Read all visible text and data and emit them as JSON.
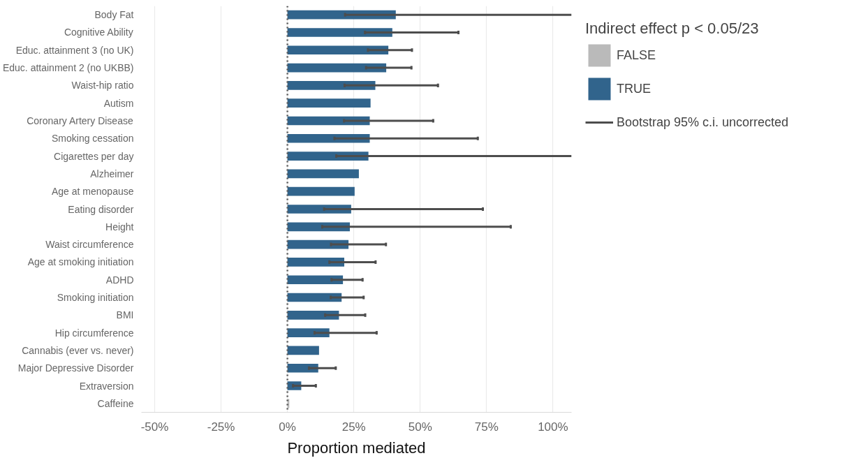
{
  "chart_data": {
    "type": "bar",
    "orientation": "horizontal",
    "xlabel": "Proportion mediated",
    "legend_title": "Indirect effect p < 0.05/23",
    "categories": [
      "Body Fat",
      "Cognitive Ability",
      "Educ. attainment 3 (no UK)",
      "Educ. attainment 2 (no UKBB)",
      "Waist-hip ratio",
      "Autism",
      "Coronary Artery Disease",
      "Smoking cessation",
      "Cigarettes per day",
      "Alzheimer",
      "Age at menopause",
      "Eating disorder",
      "Height",
      "Waist circumference",
      "Age at smoking initiation",
      "ADHD",
      "Smoking initiation",
      "BMI",
      "Hip circumference",
      "Cannabis (ever vs. never)",
      "Major Depressive Disorder",
      "Extraversion",
      "Caffeine"
    ],
    "series": [
      {
        "name": "FALSE",
        "color": "#bababa",
        "values": [
          null,
          null,
          null,
          null,
          null,
          null,
          null,
          null,
          null,
          null,
          null,
          null,
          null,
          null,
          null,
          null,
          null,
          null,
          null,
          null,
          null,
          null,
          0.7
        ]
      },
      {
        "name": "TRUE",
        "color": "#31648c",
        "values": [
          40.8,
          39.5,
          38.0,
          37.2,
          33.1,
          31.3,
          31.0,
          31.0,
          30.5,
          26.9,
          25.3,
          24.0,
          23.5,
          23.0,
          21.4,
          20.9,
          20.4,
          19.4,
          15.8,
          11.9,
          11.6,
          5.2,
          null
        ],
        "errors": [
          [
            21.7,
            107
          ],
          [
            29.2,
            64.4
          ],
          [
            30.3,
            46.9
          ],
          [
            29.6,
            46.7
          ],
          [
            21.5,
            56.7
          ],
          null,
          [
            21.3,
            54.9
          ],
          [
            17.7,
            71.7
          ],
          [
            18.4,
            107
          ],
          null,
          null,
          [
            13.8,
            73.6
          ],
          [
            13.1,
            84.1
          ],
          [
            16.4,
            37.1
          ],
          [
            15.8,
            33.2
          ],
          [
            16.6,
            28.3
          ],
          [
            16.3,
            28.7
          ],
          [
            14.2,
            29.3
          ],
          [
            10.2,
            33.6
          ],
          null,
          [
            8.1,
            18.2
          ],
          [
            2.1,
            10.7
          ],
          null
        ]
      }
    ],
    "xlim": [
      -55,
      107
    ],
    "xticks": [
      {
        "value": -50,
        "label": "-50%"
      },
      {
        "value": -25,
        "label": "-25%"
      },
      {
        "value": 0,
        "label": "0%"
      },
      {
        "value": 25,
        "label": "25%"
      },
      {
        "value": 50,
        "label": "50%"
      },
      {
        "value": 75,
        "label": "75%"
      },
      {
        "value": 100,
        "label": "100%"
      }
    ],
    "ref_lines": [
      {
        "axis": "x",
        "value": 0,
        "color": "#555555",
        "line_style": "dotted"
      }
    ],
    "annotations": [
      "Bootstrap 95% c.i. uncorrected"
    ],
    "grid": "x",
    "legend": "right"
  }
}
